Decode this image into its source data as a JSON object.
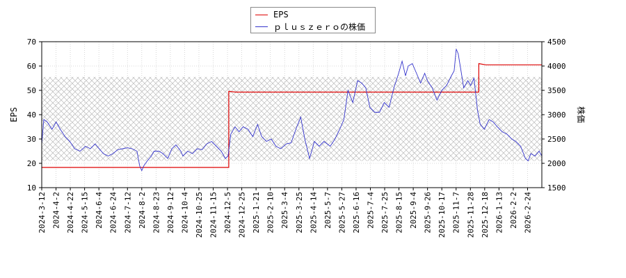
{
  "chart_data": {
    "type": "line",
    "legend_placement": "top-center",
    "grid": true,
    "left_axis": {
      "label": "EPS",
      "ylim": [
        10,
        70
      ],
      "ticks": [
        10,
        20,
        30,
        40,
        50,
        60,
        70
      ]
    },
    "right_axis": {
      "label": "株価",
      "ylim": [
        1500,
        4500
      ],
      "ticks": [
        1500,
        2000,
        2500,
        3000,
        3500,
        4000,
        4500
      ]
    },
    "x_axis": {
      "range": [
        "2024-03-12",
        "2026-03-12"
      ],
      "tick_labels": [
        "2024-3-12",
        "2024-4-2",
        "2024-4-22",
        "2024-5-15",
        "2024-6-4",
        "2024-6-24",
        "2024-7-12",
        "2024-8-2",
        "2024-8-23",
        "2024-9-12",
        "2024-10-4",
        "2024-10-25",
        "2024-11-15",
        "2024-12-5",
        "2024-12-25",
        "2025-1-21",
        "2025-2-10",
        "2025-3-4",
        "2025-3-25",
        "2025-4-14",
        "2025-5-7",
        "2025-5-27",
        "2025-6-16",
        "2025-7-4",
        "2025-7-25",
        "2025-8-15",
        "2025-9-4",
        "2025-9-26",
        "2025-10-17",
        "2025-11-7",
        "2025-11-28",
        "2025-12-18",
        "2026-1-13",
        "2026-2-2",
        "2026-2-24"
      ]
    },
    "series": [
      {
        "name": "EPS",
        "color": "#dd0000",
        "axis": "left",
        "points": [
          [
            "2024-03-12",
            18.3
          ],
          [
            "2024-12-10",
            18.3
          ],
          [
            "2024-12-10",
            49.6
          ],
          [
            "2024-12-20",
            49.3
          ],
          [
            "2025-12-10",
            49.3
          ],
          [
            "2025-12-10",
            61.0
          ],
          [
            "2025-12-20",
            60.5
          ],
          [
            "2026-03-12",
            60.5
          ]
        ]
      },
      {
        "name": "ｐｌｕｓｚｅｒｏの株価",
        "color": "#3333cc",
        "axis": "right",
        "points": [
          [
            "2024-03-12",
            2400
          ],
          [
            "2024-03-15",
            2900
          ],
          [
            "2024-03-20",
            2850
          ],
          [
            "2024-03-27",
            2700
          ],
          [
            "2024-04-02",
            2850
          ],
          [
            "2024-04-08",
            2700
          ],
          [
            "2024-04-15",
            2550
          ],
          [
            "2024-04-22",
            2450
          ],
          [
            "2024-04-29",
            2300
          ],
          [
            "2024-05-07",
            2250
          ],
          [
            "2024-05-15",
            2350
          ],
          [
            "2024-05-22",
            2300
          ],
          [
            "2024-05-29",
            2400
          ],
          [
            "2024-06-04",
            2300
          ],
          [
            "2024-06-10",
            2200
          ],
          [
            "2024-06-17",
            2150
          ],
          [
            "2024-06-24",
            2200
          ],
          [
            "2024-07-01",
            2280
          ],
          [
            "2024-07-08",
            2300
          ],
          [
            "2024-07-15",
            2320
          ],
          [
            "2024-07-22",
            2300
          ],
          [
            "2024-07-29",
            2250
          ],
          [
            "2024-08-02",
            1950
          ],
          [
            "2024-08-05",
            1850
          ],
          [
            "2024-08-08",
            1950
          ],
          [
            "2024-08-13",
            2050
          ],
          [
            "2024-08-19",
            2150
          ],
          [
            "2024-08-23",
            2250
          ],
          [
            "2024-08-30",
            2250
          ],
          [
            "2024-09-05",
            2200
          ],
          [
            "2024-09-12",
            2100
          ],
          [
            "2024-09-18",
            2300
          ],
          [
            "2024-09-24",
            2380
          ],
          [
            "2024-10-01",
            2250
          ],
          [
            "2024-10-04",
            2150
          ],
          [
            "2024-10-11",
            2250
          ],
          [
            "2024-10-18",
            2200
          ],
          [
            "2024-10-25",
            2300
          ],
          [
            "2024-11-01",
            2280
          ],
          [
            "2024-11-08",
            2400
          ],
          [
            "2024-11-15",
            2450
          ],
          [
            "2024-11-22",
            2350
          ],
          [
            "2024-11-29",
            2250
          ],
          [
            "2024-12-05",
            2100
          ],
          [
            "2024-12-09",
            2150
          ],
          [
            "2024-12-13",
            2600
          ],
          [
            "2024-12-19",
            2750
          ],
          [
            "2024-12-25",
            2650
          ],
          [
            "2024-12-31",
            2750
          ],
          [
            "2025-01-07",
            2700
          ],
          [
            "2025-01-14",
            2550
          ],
          [
            "2025-01-21",
            2800
          ],
          [
            "2025-01-27",
            2550
          ],
          [
            "2025-02-03",
            2450
          ],
          [
            "2025-02-10",
            2500
          ],
          [
            "2025-02-17",
            2350
          ],
          [
            "2025-02-24",
            2300
          ],
          [
            "2025-03-04",
            2400
          ],
          [
            "2025-03-11",
            2420
          ],
          [
            "2025-03-18",
            2700
          ],
          [
            "2025-03-25",
            2950
          ],
          [
            "2025-03-31",
            2500
          ],
          [
            "2025-04-07",
            2100
          ],
          [
            "2025-04-14",
            2450
          ],
          [
            "2025-04-21",
            2350
          ],
          [
            "2025-04-28",
            2450
          ],
          [
            "2025-05-07",
            2350
          ],
          [
            "2025-05-14",
            2500
          ],
          [
            "2025-05-21",
            2700
          ],
          [
            "2025-05-27",
            2900
          ],
          [
            "2025-06-02",
            3500
          ],
          [
            "2025-06-09",
            3250
          ],
          [
            "2025-06-16",
            3700
          ],
          [
            "2025-06-22",
            3650
          ],
          [
            "2025-06-28",
            3550
          ],
          [
            "2025-07-04",
            3150
          ],
          [
            "2025-07-11",
            3050
          ],
          [
            "2025-07-18",
            3050
          ],
          [
            "2025-07-25",
            3250
          ],
          [
            "2025-08-01",
            3150
          ],
          [
            "2025-08-08",
            3550
          ],
          [
            "2025-08-15",
            3850
          ],
          [
            "2025-08-20",
            4100
          ],
          [
            "2025-08-25",
            3800
          ],
          [
            "2025-08-29",
            4000
          ],
          [
            "2025-09-04",
            4050
          ],
          [
            "2025-09-10",
            3850
          ],
          [
            "2025-09-16",
            3650
          ],
          [
            "2025-09-22",
            3850
          ],
          [
            "2025-09-26",
            3700
          ],
          [
            "2025-10-03",
            3550
          ],
          [
            "2025-10-10",
            3300
          ],
          [
            "2025-10-17",
            3500
          ],
          [
            "2025-10-24",
            3600
          ],
          [
            "2025-10-31",
            3800
          ],
          [
            "2025-11-04",
            3900
          ],
          [
            "2025-11-07",
            4350
          ],
          [
            "2025-11-10",
            4250
          ],
          [
            "2025-11-14",
            3900
          ],
          [
            "2025-11-18",
            3550
          ],
          [
            "2025-11-24",
            3700
          ],
          [
            "2025-11-28",
            3600
          ],
          [
            "2025-12-03",
            3750
          ],
          [
            "2025-12-08",
            3100
          ],
          [
            "2025-12-12",
            2800
          ],
          [
            "2025-12-18",
            2700
          ],
          [
            "2025-12-25",
            2900
          ],
          [
            "2025-12-31",
            2850
          ],
          [
            "2026-01-06",
            2750
          ],
          [
            "2026-01-13",
            2650
          ],
          [
            "2026-01-20",
            2600
          ],
          [
            "2026-01-27",
            2500
          ],
          [
            "2026-02-02",
            2450
          ],
          [
            "2026-02-09",
            2350
          ],
          [
            "2026-02-16",
            2100
          ],
          [
            "2026-02-20",
            2050
          ],
          [
            "2026-02-24",
            2200
          ],
          [
            "2026-03-02",
            2150
          ],
          [
            "2026-03-08",
            2250
          ],
          [
            "2026-03-12",
            2150
          ]
        ]
      }
    ]
  }
}
